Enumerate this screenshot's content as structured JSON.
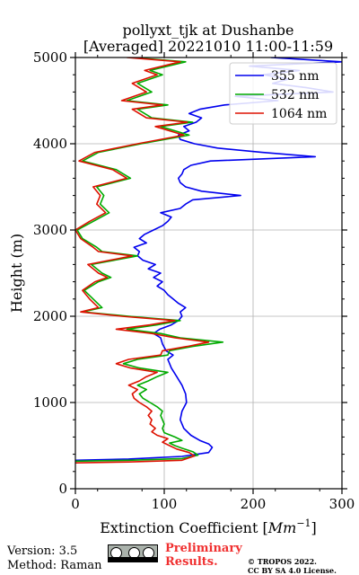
{
  "chart_data": {
    "type": "line",
    "title_line1": "pollyxt_tjk at Dushanbe",
    "title_line2": "[Averaged] 20221010 11:00-11:59",
    "xlabel": "Extinction Coefficient [$Mm^{-1}$]",
    "xlabel_text": "Extinction Coefficient [",
    "xlabel_unit": "Mm",
    "xlabel_exp": "−1",
    "xlabel_end": "]",
    "ylabel": "Height (m)",
    "xlim": [
      0,
      300
    ],
    "ylim": [
      0,
      5000
    ],
    "xticks": [
      "0",
      "100",
      "200",
      "300"
    ],
    "yticks": [
      "0",
      "1000",
      "2000",
      "3000",
      "4000",
      "5000"
    ],
    "grid": true,
    "legend_position": "top-right",
    "series": [
      {
        "name": "355 nm",
        "color": "#0000ee",
        "points": [
          [
            0,
            330
          ],
          [
            60,
            345
          ],
          [
            120,
            375
          ],
          [
            150,
            420
          ],
          [
            154,
            480
          ],
          [
            150,
            520
          ],
          [
            140,
            560
          ],
          [
            130,
            620
          ],
          [
            122,
            700
          ],
          [
            118,
            800
          ],
          [
            120,
            900
          ],
          [
            125,
            1000
          ],
          [
            124,
            1100
          ],
          [
            120,
            1200
          ],
          [
            114,
            1300
          ],
          [
            108,
            1400
          ],
          [
            104,
            1500
          ],
          [
            110,
            1550
          ],
          [
            102,
            1600
          ],
          [
            98,
            1680
          ],
          [
            96,
            1750
          ],
          [
            88,
            1800
          ],
          [
            95,
            1850
          ],
          [
            108,
            1900
          ],
          [
            116,
            1950
          ],
          [
            120,
            2000
          ],
          [
            118,
            2050
          ],
          [
            124,
            2100
          ],
          [
            116,
            2150
          ],
          [
            110,
            2200
          ],
          [
            104,
            2250
          ],
          [
            100,
            2300
          ],
          [
            92,
            2350
          ],
          [
            98,
            2400
          ],
          [
            88,
            2450
          ],
          [
            96,
            2500
          ],
          [
            82,
            2550
          ],
          [
            90,
            2600
          ],
          [
            76,
            2650
          ],
          [
            70,
            2700
          ],
          [
            72,
            2750
          ],
          [
            66,
            2800
          ],
          [
            80,
            2850
          ],
          [
            72,
            2900
          ],
          [
            78,
            2950
          ],
          [
            88,
            3000
          ],
          [
            98,
            3050
          ],
          [
            104,
            3100
          ],
          [
            108,
            3150
          ],
          [
            96,
            3200
          ],
          [
            118,
            3250
          ],
          [
            124,
            3300
          ],
          [
            132,
            3350
          ],
          [
            186,
            3400
          ],
          [
            142,
            3450
          ],
          [
            124,
            3500
          ],
          [
            118,
            3550
          ],
          [
            116,
            3600
          ],
          [
            120,
            3650
          ],
          [
            122,
            3700
          ],
          [
            130,
            3750
          ],
          [
            152,
            3800
          ],
          [
            270,
            3850
          ],
          [
            210,
            3900
          ],
          [
            160,
            3950
          ],
          [
            134,
            4000
          ],
          [
            118,
            4050
          ],
          [
            116,
            4100
          ],
          [
            128,
            4150
          ],
          [
            122,
            4200
          ],
          [
            136,
            4250
          ],
          [
            142,
            4300
          ],
          [
            128,
            4350
          ],
          [
            140,
            4400
          ],
          [
            168,
            4450
          ],
          [
            228,
            4500
          ],
          [
            180,
            4550
          ],
          [
            290,
            4600
          ],
          [
            260,
            4650
          ],
          [
            222,
            4700
          ],
          [
            240,
            4750
          ],
          [
            212,
            4800
          ],
          [
            252,
            4850
          ],
          [
            196,
            4900
          ],
          [
            300,
            4950
          ],
          [
            220,
            5000
          ]
        ]
      },
      {
        "name": "532 nm",
        "color": "#00aa00",
        "points": [
          [
            0,
            320
          ],
          [
            60,
            330
          ],
          [
            120,
            350
          ],
          [
            138,
            390
          ],
          [
            132,
            430
          ],
          [
            120,
            470
          ],
          [
            112,
            500
          ],
          [
            106,
            530
          ],
          [
            120,
            560
          ],
          [
            112,
            600
          ],
          [
            100,
            650
          ],
          [
            98,
            700
          ],
          [
            100,
            750
          ],
          [
            98,
            800
          ],
          [
            96,
            850
          ],
          [
            98,
            900
          ],
          [
            92,
            950
          ],
          [
            84,
            1000
          ],
          [
            76,
            1050
          ],
          [
            72,
            1100
          ],
          [
            80,
            1150
          ],
          [
            70,
            1200
          ],
          [
            82,
            1250
          ],
          [
            92,
            1300
          ],
          [
            104,
            1350
          ],
          [
            72,
            1400
          ],
          [
            54,
            1450
          ],
          [
            70,
            1500
          ],
          [
            104,
            1550
          ],
          [
            106,
            1600
          ],
          [
            132,
            1650
          ],
          [
            166,
            1700
          ],
          [
            118,
            1750
          ],
          [
            96,
            1800
          ],
          [
            58,
            1850
          ],
          [
            92,
            1900
          ],
          [
            118,
            1950
          ],
          [
            60,
            2000
          ],
          [
            8,
            2050
          ],
          [
            30,
            2100
          ],
          [
            20,
            2200
          ],
          [
            10,
            2300
          ],
          [
            26,
            2400
          ],
          [
            40,
            2450
          ],
          [
            30,
            2500
          ],
          [
            18,
            2600
          ],
          [
            70,
            2700
          ],
          [
            30,
            2750
          ],
          [
            24,
            2800
          ],
          [
            8,
            2900
          ],
          [
            2,
            3000
          ],
          [
            20,
            3100
          ],
          [
            38,
            3200
          ],
          [
            28,
            3300
          ],
          [
            32,
            3400
          ],
          [
            24,
            3500
          ],
          [
            62,
            3600
          ],
          [
            46,
            3700
          ],
          [
            8,
            3800
          ],
          [
            26,
            3900
          ],
          [
            74,
            4000
          ],
          [
            128,
            4100
          ],
          [
            96,
            4200
          ],
          [
            132,
            4250
          ],
          [
            86,
            4300
          ],
          [
            70,
            4400
          ],
          [
            104,
            4450
          ],
          [
            58,
            4500
          ],
          [
            86,
            4600
          ],
          [
            70,
            4700
          ],
          [
            98,
            4800
          ],
          [
            84,
            4850
          ],
          [
            124,
            4950
          ],
          [
            64,
            5000
          ]
        ]
      },
      {
        "name": "1064 nm",
        "color": "#dd1100",
        "points": [
          [
            0,
            300
          ],
          [
            60,
            310
          ],
          [
            120,
            330
          ],
          [
            134,
            380
          ],
          [
            128,
            420
          ],
          [
            114,
            460
          ],
          [
            106,
            500
          ],
          [
            98,
            540
          ],
          [
            104,
            580
          ],
          [
            92,
            620
          ],
          [
            86,
            660
          ],
          [
            90,
            700
          ],
          [
            84,
            750
          ],
          [
            86,
            800
          ],
          [
            82,
            850
          ],
          [
            86,
            900
          ],
          [
            80,
            950
          ],
          [
            72,
            1000
          ],
          [
            66,
            1050
          ],
          [
            64,
            1100
          ],
          [
            70,
            1150
          ],
          [
            60,
            1200
          ],
          [
            72,
            1250
          ],
          [
            80,
            1300
          ],
          [
            92,
            1350
          ],
          [
            62,
            1400
          ],
          [
            46,
            1450
          ],
          [
            60,
            1500
          ],
          [
            96,
            1550
          ],
          [
            98,
            1600
          ],
          [
            126,
            1650
          ],
          [
            150,
            1700
          ],
          [
            112,
            1750
          ],
          [
            86,
            1800
          ],
          [
            46,
            1850
          ],
          [
            84,
            1900
          ],
          [
            112,
            1950
          ],
          [
            52,
            2000
          ],
          [
            6,
            2050
          ],
          [
            26,
            2100
          ],
          [
            16,
            2200
          ],
          [
            8,
            2300
          ],
          [
            22,
            2400
          ],
          [
            36,
            2450
          ],
          [
            26,
            2500
          ],
          [
            14,
            2600
          ],
          [
            64,
            2700
          ],
          [
            26,
            2750
          ],
          [
            20,
            2800
          ],
          [
            6,
            2900
          ],
          [
            0,
            3000
          ],
          [
            16,
            3100
          ],
          [
            34,
            3200
          ],
          [
            24,
            3300
          ],
          [
            28,
            3400
          ],
          [
            20,
            3500
          ],
          [
            58,
            3600
          ],
          [
            42,
            3700
          ],
          [
            4,
            3800
          ],
          [
            22,
            3900
          ],
          [
            70,
            4000
          ],
          [
            122,
            4100
          ],
          [
            90,
            4200
          ],
          [
            126,
            4250
          ],
          [
            80,
            4300
          ],
          [
            64,
            4400
          ],
          [
            98,
            4450
          ],
          [
            52,
            4500
          ],
          [
            80,
            4600
          ],
          [
            64,
            4700
          ],
          [
            92,
            4800
          ],
          [
            78,
            4850
          ],
          [
            118,
            4950
          ],
          [
            58,
            5000
          ]
        ]
      }
    ]
  },
  "footer": {
    "version": "Version: 3.5",
    "method": "Method: Raman",
    "prelim_line1": "Preliminary",
    "prelim_line2": "Results.",
    "tropos_line1": "© TROPOS 2022.",
    "tropos_line2": "CC BY SA 4.0 License."
  }
}
